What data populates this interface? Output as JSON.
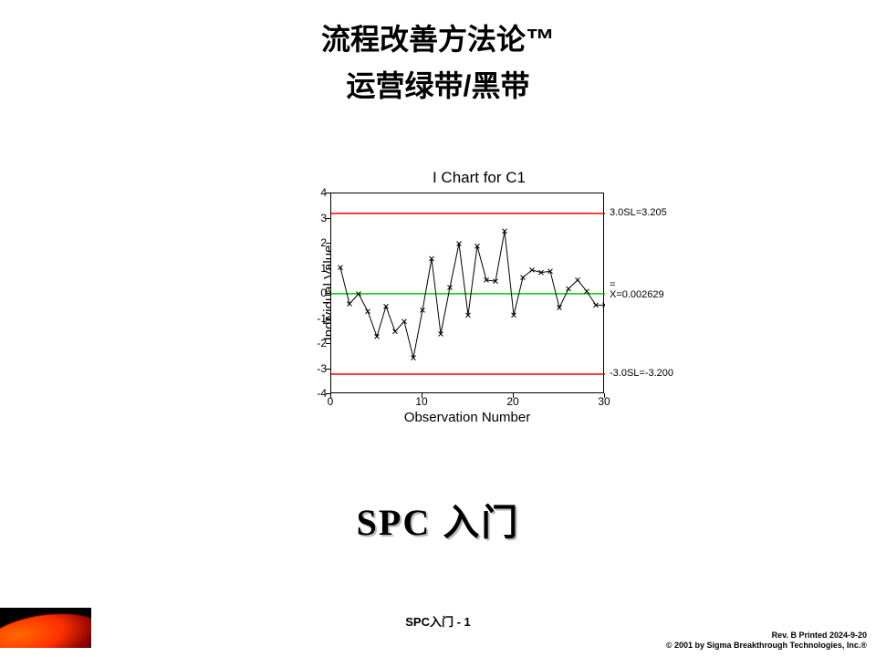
{
  "title": {
    "line1": "流程改善方法论™",
    "line2": "运营绿带/黑带"
  },
  "chart": {
    "type": "line",
    "title": "I Chart for C1",
    "ylabel": "Individual Value",
    "xlabel": "Observation Number",
    "xlim": [
      0,
      30
    ],
    "ylim": [
      -4,
      4
    ],
    "xticks": [
      0,
      10,
      20,
      30
    ],
    "yticks": [
      -4,
      -3,
      -2,
      -1,
      0,
      1,
      2,
      3,
      4
    ],
    "ucl": {
      "value": 3.205,
      "label": "3.0SL=3.205",
      "color": "#ff0000"
    },
    "lcl": {
      "value": -3.2,
      "label": "-3.0SL=-3.200",
      "color": "#ff0000"
    },
    "center": {
      "value": 0.002629,
      "label_top": "=",
      "label": "X=0.002629",
      "color": "#00c800"
    },
    "line_color": "#000000",
    "marker": "x",
    "marker_size": 5,
    "line_width": 1,
    "background_color": "#ffffff",
    "border_color": "#000000",
    "tick_fontsize": 12,
    "label_fontsize": 15,
    "title_fontsize": 17,
    "annot_fontsize": 11,
    "x": [
      1,
      2,
      3,
      4,
      5,
      6,
      7,
      8,
      9,
      10,
      11,
      12,
      13,
      14,
      15,
      16,
      17,
      18,
      19,
      20,
      21,
      22,
      23,
      24,
      25,
      26,
      27,
      28,
      29,
      30
    ],
    "y": [
      1.05,
      -0.4,
      0.0,
      -0.7,
      -1.7,
      -0.5,
      -1.5,
      -1.1,
      -2.55,
      -0.65,
      1.4,
      -1.6,
      0.25,
      2.0,
      -0.85,
      1.9,
      0.55,
      0.5,
      2.5,
      -0.85,
      0.65,
      0.95,
      0.85,
      0.9,
      -0.55,
      0.2,
      0.55,
      0.1,
      -0.45,
      -0.45
    ]
  },
  "subtitle": {
    "spc": "SPC",
    "rest": " 入门"
  },
  "footer": {
    "center": "SPC入门 - 1",
    "right_line1": "Rev. B  Printed 2024-9-20",
    "right_line2": "© 2001 by Sigma Breakthrough Technologies, Inc.®"
  }
}
